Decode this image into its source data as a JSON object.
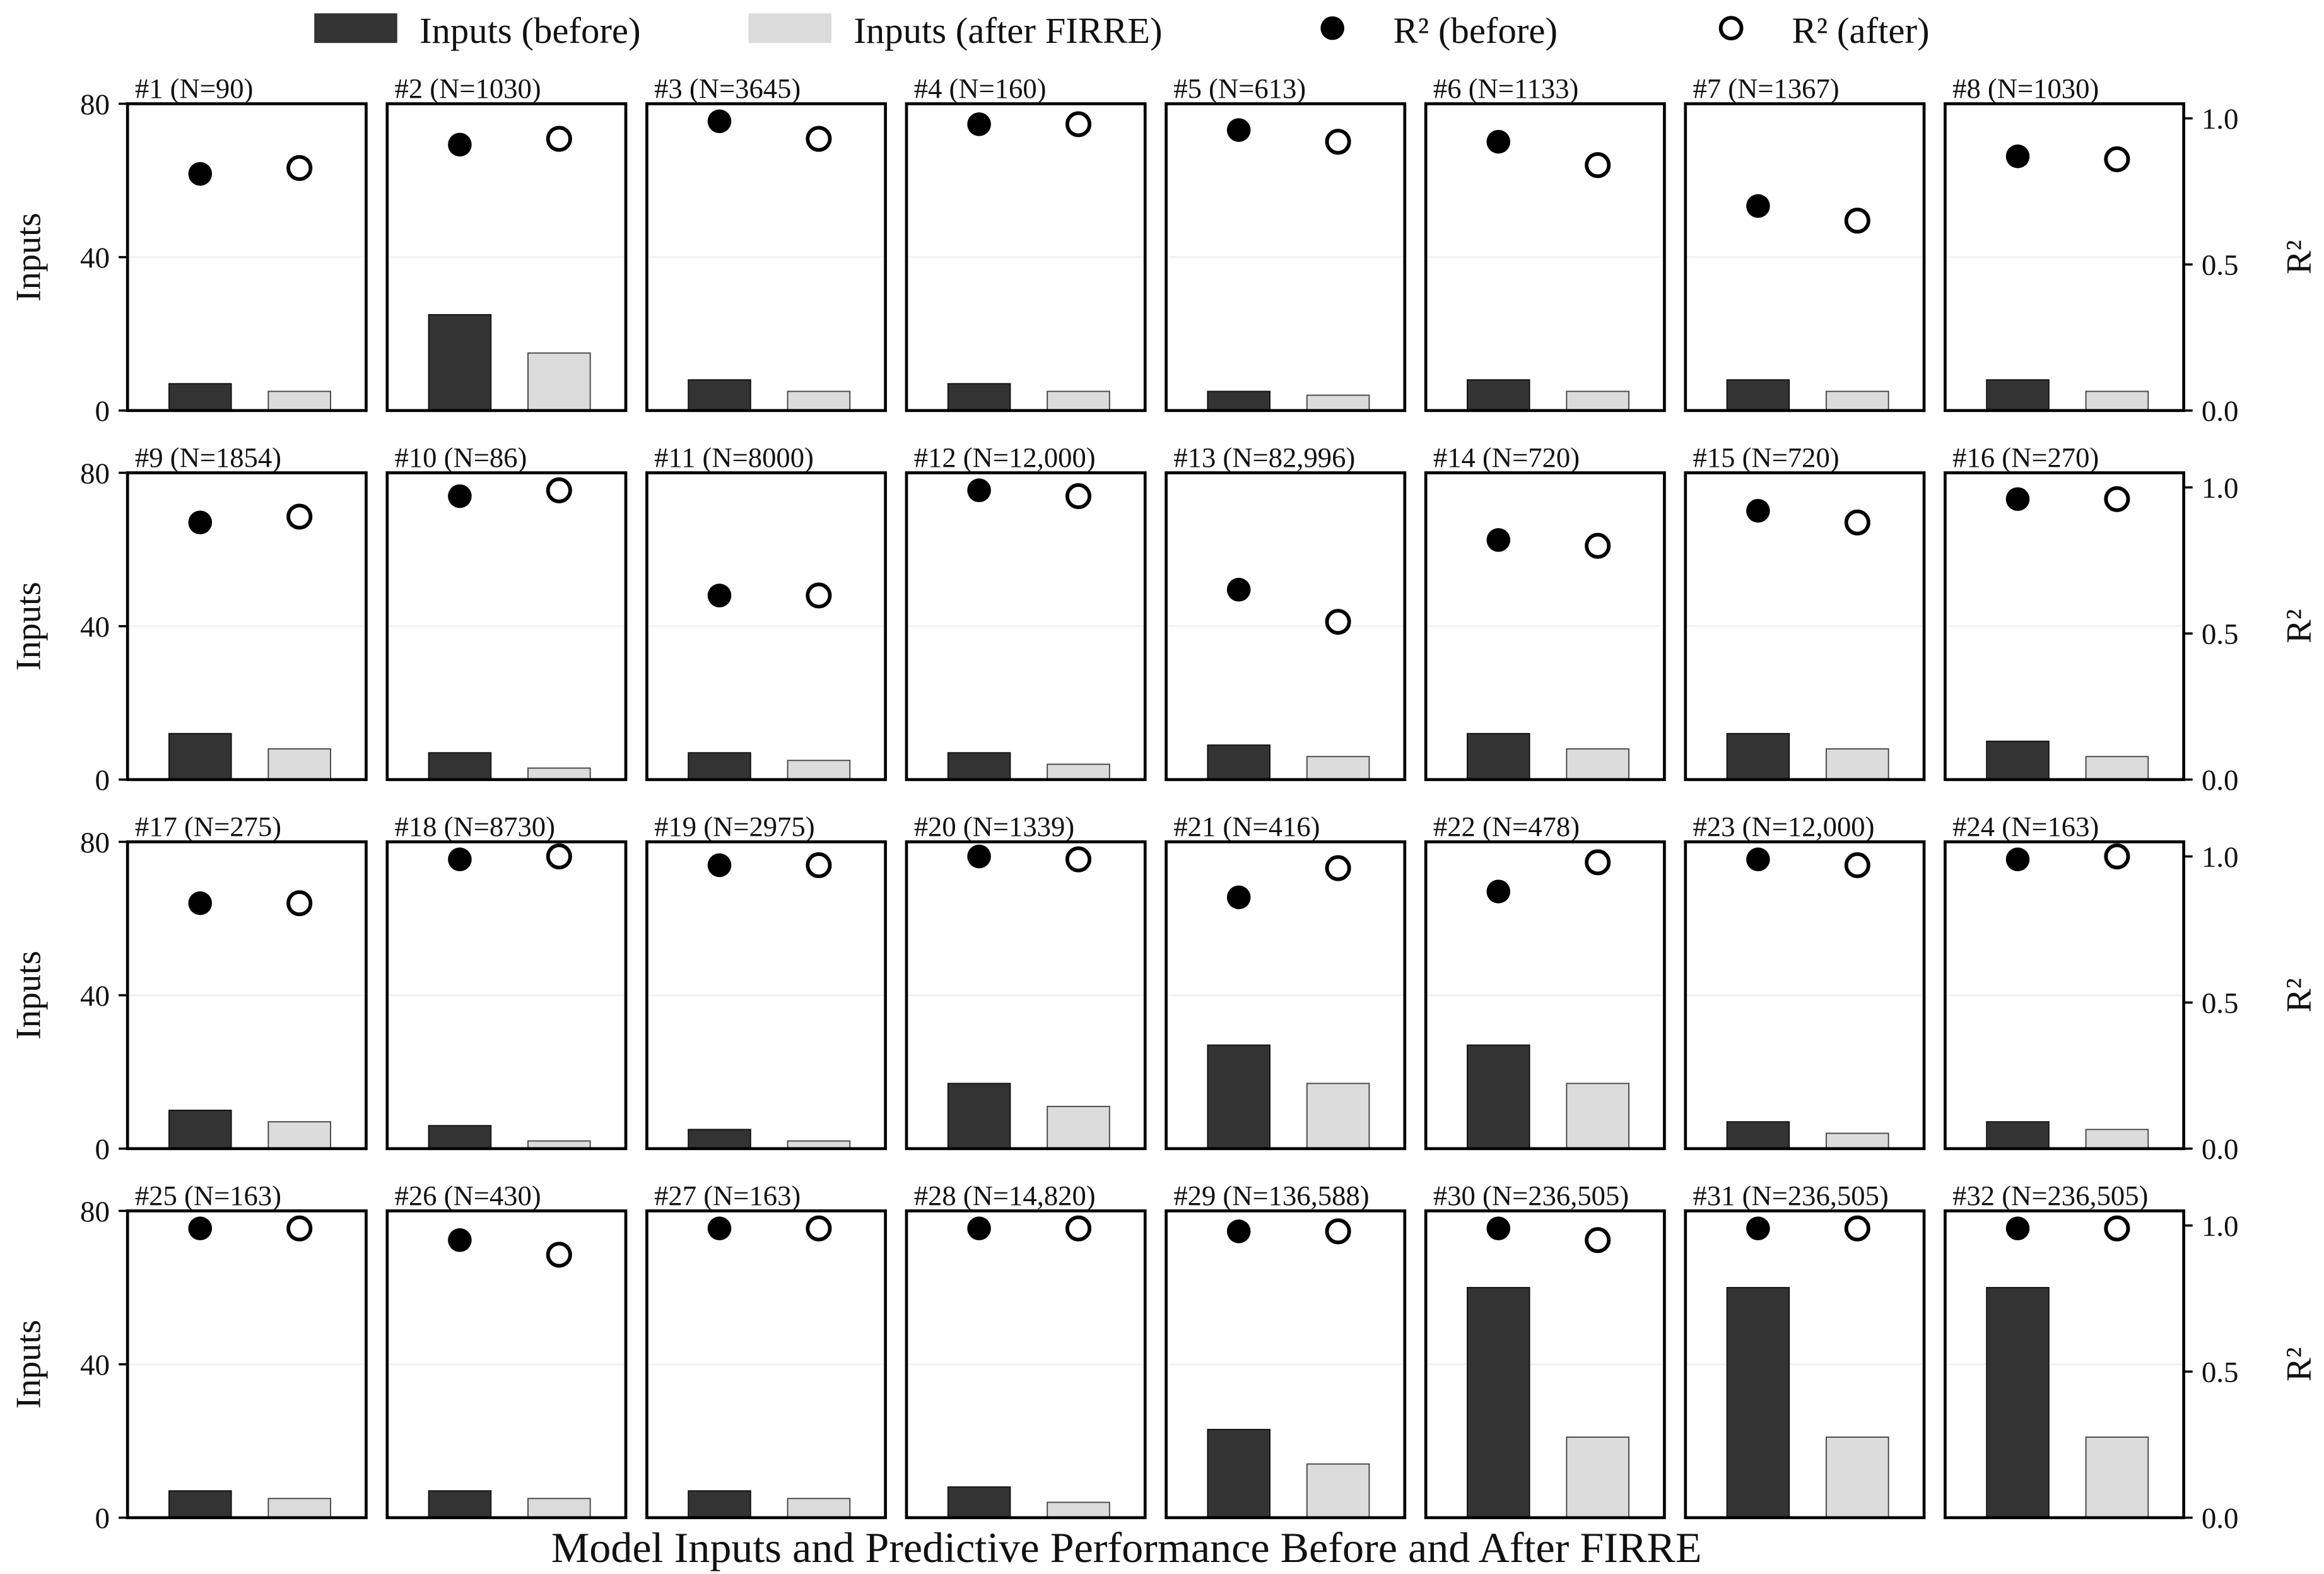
{
  "chart_data": {
    "type": "bar",
    "title": "Model Inputs and Predictive Performance Before and After FIRRE",
    "ylabel": "Inputs",
    "y2label": "R²",
    "ylim": [
      0,
      80
    ],
    "y2lim": [
      0,
      1.05
    ],
    "yticks": [
      "0",
      "40",
      "80"
    ],
    "y2ticks": [
      "0.0",
      "0.5",
      "1.0"
    ],
    "legend_position": "top",
    "legend": [
      "Inputs (before)",
      "Inputs (after FIRRE)",
      "R² (before)",
      "R² (after)"
    ],
    "colors": {
      "before": "#333333",
      "after": "#dcdcdc"
    },
    "panels": [
      {
        "label": "#1 (N=90)",
        "inputs_before": 7,
        "inputs_after": 5,
        "r2_before": 0.81,
        "r2_after": 0.83
      },
      {
        "label": "#2 (N=1030)",
        "inputs_before": 25,
        "inputs_after": 15,
        "r2_before": 0.91,
        "r2_after": 0.93
      },
      {
        "label": "#3 (N=3645)",
        "inputs_before": 8,
        "inputs_after": 5,
        "r2_before": 0.99,
        "r2_after": 0.93
      },
      {
        "label": "#4 (N=160)",
        "inputs_before": 7,
        "inputs_after": 5,
        "r2_before": 0.98,
        "r2_after": 0.98
      },
      {
        "label": "#5 (N=613)",
        "inputs_before": 5,
        "inputs_after": 4,
        "r2_before": 0.96,
        "r2_after": 0.92
      },
      {
        "label": "#6 (N=1133)",
        "inputs_before": 8,
        "inputs_after": 5,
        "r2_before": 0.92,
        "r2_after": 0.84
      },
      {
        "label": "#7 (N=1367)",
        "inputs_before": 8,
        "inputs_after": 5,
        "r2_before": 0.7,
        "r2_after": 0.65
      },
      {
        "label": "#8 (N=1030)",
        "inputs_before": 8,
        "inputs_after": 5,
        "r2_before": 0.87,
        "r2_after": 0.86
      },
      {
        "label": "#9 (N=1854)",
        "inputs_before": 12,
        "inputs_after": 8,
        "r2_before": 0.88,
        "r2_after": 0.9
      },
      {
        "label": "#10 (N=86)",
        "inputs_before": 7,
        "inputs_after": 3,
        "r2_before": 0.97,
        "r2_after": 0.99
      },
      {
        "label": "#11 (N=8000)",
        "inputs_before": 7,
        "inputs_after": 5,
        "r2_before": 0.63,
        "r2_after": 0.63
      },
      {
        "label": "#12 (N=12,000)",
        "inputs_before": 7,
        "inputs_after": 4,
        "r2_before": 0.99,
        "r2_after": 0.97
      },
      {
        "label": "#13 (N=82,996)",
        "inputs_before": 9,
        "inputs_after": 6,
        "r2_before": 0.65,
        "r2_after": 0.54
      },
      {
        "label": "#14 (N=720)",
        "inputs_before": 12,
        "inputs_after": 8,
        "r2_before": 0.82,
        "r2_after": 0.8
      },
      {
        "label": "#15 (N=720)",
        "inputs_before": 12,
        "inputs_after": 8,
        "r2_before": 0.92,
        "r2_after": 0.88
      },
      {
        "label": "#16 (N=270)",
        "inputs_before": 10,
        "inputs_after": 6,
        "r2_before": 0.96,
        "r2_after": 0.96
      },
      {
        "label": "#17 (N=275)",
        "inputs_before": 10,
        "inputs_after": 7,
        "r2_before": 0.84,
        "r2_after": 0.84
      },
      {
        "label": "#18 (N=8730)",
        "inputs_before": 6,
        "inputs_after": 2,
        "r2_before": 0.99,
        "r2_after": 1.0
      },
      {
        "label": "#19 (N=2975)",
        "inputs_before": 5,
        "inputs_after": 2,
        "r2_before": 0.97,
        "r2_after": 0.97
      },
      {
        "label": "#20 (N=1339)",
        "inputs_before": 17,
        "inputs_after": 11,
        "r2_before": 1.0,
        "r2_after": 0.99
      },
      {
        "label": "#21 (N=416)",
        "inputs_before": 27,
        "inputs_after": 17,
        "r2_before": 0.86,
        "r2_after": 0.96
      },
      {
        "label": "#22 (N=478)",
        "inputs_before": 27,
        "inputs_after": 17,
        "r2_before": 0.88,
        "r2_after": 0.98
      },
      {
        "label": "#23 (N=12,000)",
        "inputs_before": 7,
        "inputs_after": 4,
        "r2_before": 0.99,
        "r2_after": 0.97
      },
      {
        "label": "#24 (N=163)",
        "inputs_before": 7,
        "inputs_after": 5,
        "r2_before": 0.99,
        "r2_after": 1.0
      },
      {
        "label": "#25 (N=163)",
        "inputs_before": 7,
        "inputs_after": 5,
        "r2_before": 0.99,
        "r2_after": 0.99
      },
      {
        "label": "#26 (N=430)",
        "inputs_before": 7,
        "inputs_after": 5,
        "r2_before": 0.95,
        "r2_after": 0.9
      },
      {
        "label": "#27 (N=163)",
        "inputs_before": 7,
        "inputs_after": 5,
        "r2_before": 0.99,
        "r2_after": 0.99
      },
      {
        "label": "#28 (N=14,820)",
        "inputs_before": 8,
        "inputs_after": 4,
        "r2_before": 0.99,
        "r2_after": 0.99
      },
      {
        "label": "#29 (N=136,588)",
        "inputs_before": 23,
        "inputs_after": 14,
        "r2_before": 0.98,
        "r2_after": 0.98
      },
      {
        "label": "#30 (N=236,505)",
        "inputs_before": 60,
        "inputs_after": 21,
        "r2_before": 0.99,
        "r2_after": 0.95
      },
      {
        "label": "#31 (N=236,505)",
        "inputs_before": 60,
        "inputs_after": 21,
        "r2_before": 0.99,
        "r2_after": 0.99
      },
      {
        "label": "#32 (N=236,505)",
        "inputs_before": 60,
        "inputs_after": 21,
        "r2_before": 0.99,
        "r2_after": 0.99
      }
    ]
  }
}
